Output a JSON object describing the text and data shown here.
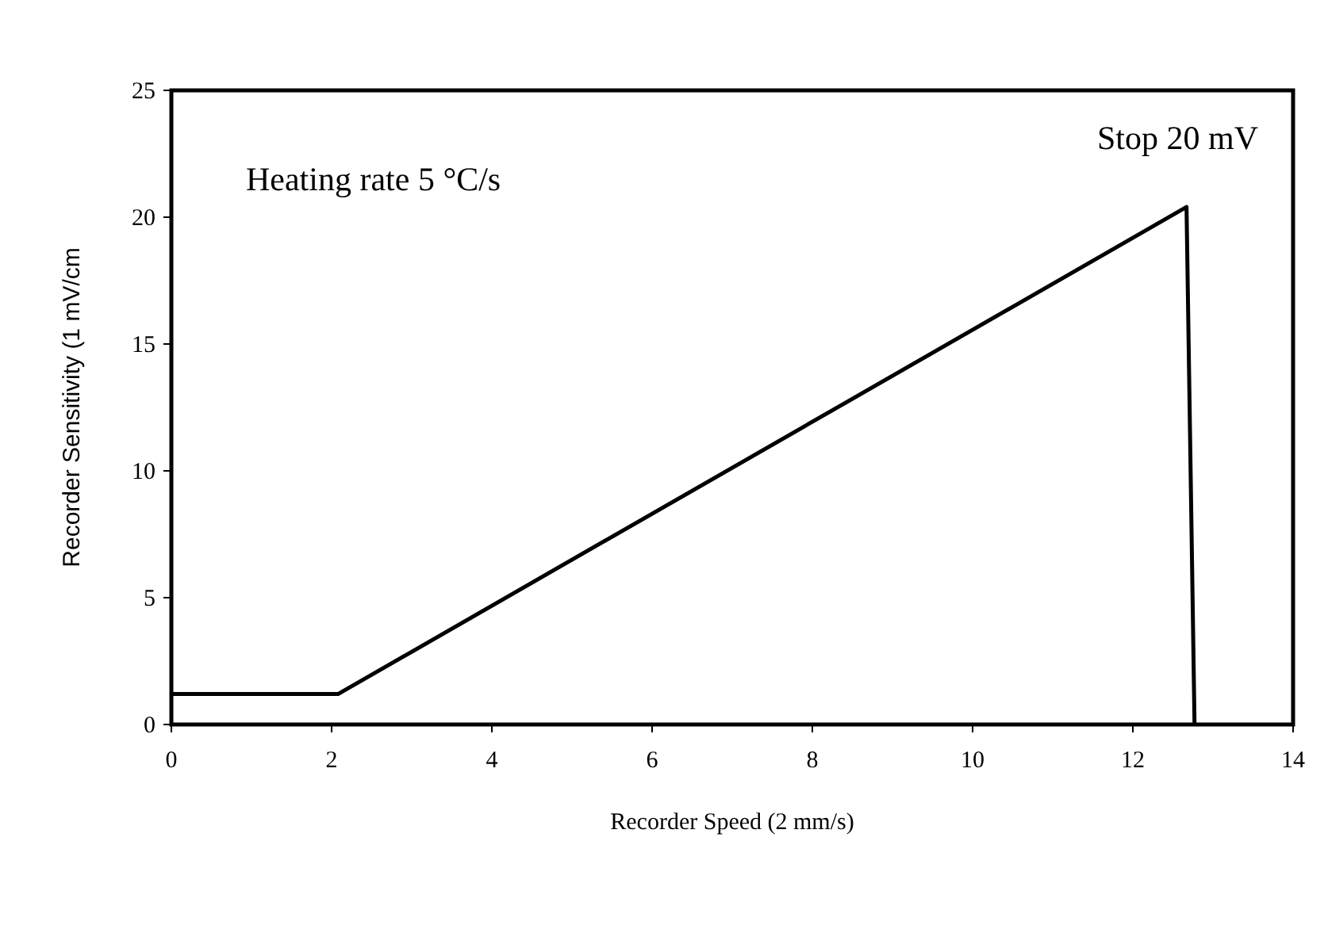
{
  "chart_data": {
    "type": "line",
    "xlabel": "Recorder Speed (2 mm/s)",
    "ylabel": "Recorder Sensitivity (1 mV/cm",
    "annotations": [
      "Heating rate 5 °C/s",
      "Stop 20 mV"
    ],
    "x": [
      0,
      2.08,
      12.67,
      12.77
    ],
    "series": [
      {
        "color": "#000000",
        "values": [
          1.2,
          1.2,
          20.4,
          0
        ]
      }
    ],
    "xlim": [
      0,
      14
    ],
    "xticks": [
      0,
      2,
      4,
      6,
      8,
      10,
      12,
      14
    ],
    "ylim": [
      0,
      25
    ],
    "yticks": [
      0,
      5,
      10,
      15,
      20,
      25
    ],
    "grid": false,
    "marker": "none",
    "line_style": "solid"
  }
}
